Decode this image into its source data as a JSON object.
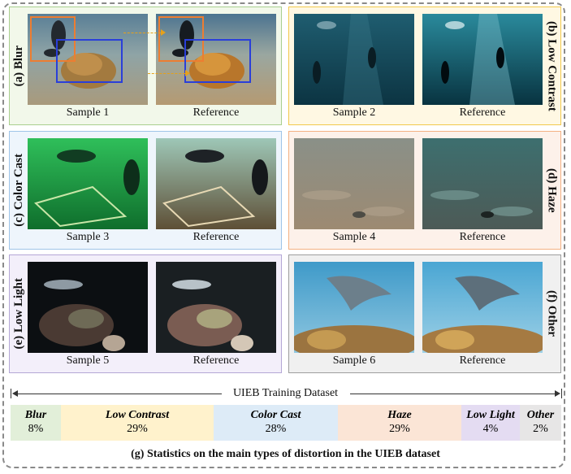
{
  "panels": [
    {
      "label": "(a) Blur",
      "sample": "Sample 1",
      "reference": "Reference",
      "color": "#a9cf8f",
      "bg": "#f2f8ea"
    },
    {
      "label": "(b) Low Contrast",
      "sample": "Sample 2",
      "reference": "Reference",
      "color": "#f2c94c",
      "bg": "#fff8e3"
    },
    {
      "label": "(c) Color Cast",
      "sample": "Sample 3",
      "reference": "Reference",
      "color": "#9fc5e8",
      "bg": "#eef5fc"
    },
    {
      "label": "(d) Haze",
      "sample": "Sample 4",
      "reference": "Reference",
      "color": "#f4b183",
      "bg": "#fdf1ea"
    },
    {
      "label": "(e) Low Light",
      "sample": "Sample 5",
      "reference": "Reference",
      "color": "#b4a7d6",
      "bg": "#f3effa"
    },
    {
      "label": "(f) Other",
      "sample": "Sample 6",
      "reference": "Reference",
      "color": "#9e9e9e",
      "bg": "#f0f0f0"
    }
  ],
  "dataset": {
    "title": "UIEB Training Dataset",
    "stats": [
      {
        "name": "Blur",
        "value": "8%",
        "fraction": 0.08,
        "bg": "#e2efd9"
      },
      {
        "name": "Low Contrast",
        "value": "29%",
        "fraction": 0.29,
        "bg": "#fff2cc"
      },
      {
        "name": "Color Cast",
        "value": "28%",
        "fraction": 0.28,
        "bg": "#ddebf7"
      },
      {
        "name": "Haze",
        "value": "29%",
        "fraction": 0.29,
        "bg": "#fbe5d6"
      },
      {
        "name": "Low Light",
        "value": "4%",
        "fraction": 0.04,
        "bg": "#e4dcf2"
      },
      {
        "name": "Other",
        "value": "2%",
        "fraction": 0.02,
        "bg": "#e7e6e6"
      }
    ]
  },
  "caption": "(g) Statistics on the main types of distortion in the UIEB dataset"
}
